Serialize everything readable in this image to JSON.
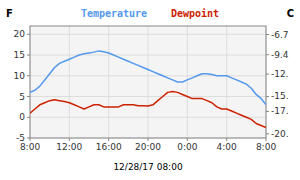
{
  "chart_data": {
    "type": "line",
    "x_label": "12/28/17 08:00",
    "y_label": "F",
    "y2_label": "C",
    "x": [
      0,
      0.5,
      1,
      1.5,
      2,
      2.5,
      3,
      3.5,
      4,
      4.5,
      5,
      5.5,
      6,
      6.5,
      7,
      7.5,
      8,
      8.5,
      9,
      9.5,
      10,
      10.5,
      11,
      11.5,
      12,
      12.5,
      13,
      13.5,
      14,
      14.5,
      15,
      15.5,
      16,
      16.5,
      17,
      17.5,
      18,
      18.5,
      19,
      19.5,
      20,
      20.5,
      21,
      21.5,
      22,
      22.5,
      23,
      23.5,
      24
    ],
    "series": [
      {
        "name": "Temperature",
        "color": "#5599ee",
        "values": [
          6,
          6.5,
          7.5,
          9,
          10.5,
          12,
          13,
          13.5,
          14,
          14.5,
          15,
          15.3,
          15.5,
          15.7,
          16,
          15.8,
          15.5,
          15,
          14.5,
          14,
          13.5,
          13,
          12.5,
          12,
          11.5,
          11,
          10.5,
          10,
          9.5,
          9,
          8.5,
          8.5,
          9,
          9.5,
          10,
          10.5,
          10.5,
          10.3,
          10,
          10,
          10,
          9.5,
          9,
          8.5,
          8,
          7,
          5.5,
          4.5,
          3
        ]
      },
      {
        "name": "Dewpoint",
        "color": "#cc2200",
        "values": [
          1,
          2,
          3,
          3.5,
          4,
          4.2,
          4,
          3.8,
          3.5,
          3,
          2.5,
          2,
          2.5,
          3,
          3,
          2.5,
          2.5,
          2.5,
          2.5,
          3,
          3,
          3,
          2.8,
          2.8,
          2.7,
          3,
          4,
          5,
          6,
          6.2,
          6,
          5.5,
          5,
          4.5,
          4.5,
          4.5,
          4,
          3.5,
          2.5,
          2,
          2,
          1.5,
          1,
          0.5,
          0,
          -0.5,
          -1.5,
          -2,
          -2.5
        ]
      }
    ],
    "xlim": [
      0,
      24
    ],
    "xticks": [
      {
        "value": 0,
        "label": "8:00"
      },
      {
        "value": 4,
        "label": "12:00"
      },
      {
        "value": 8,
        "label": "16:00"
      },
      {
        "value": 12,
        "label": "20:00"
      },
      {
        "value": 16,
        "label": "0:00"
      },
      {
        "value": 20,
        "label": "4:00"
      },
      {
        "value": 24,
        "label": "8:00"
      }
    ],
    "ylim": [
      -5,
      22
    ],
    "yticks": [
      -5,
      0,
      5,
      10,
      15,
      20
    ],
    "y2lim": [
      -20.56,
      -5.56
    ],
    "y2ticks": [
      {
        "value": -20.0,
        "label": "-20."
      },
      {
        "value": -17.0,
        "label": "-17."
      },
      {
        "value": -15.0,
        "label": "-15."
      },
      {
        "value": -12.0,
        "label": "-12."
      },
      -9.4,
      -6.7
    ],
    "grid": true
  }
}
